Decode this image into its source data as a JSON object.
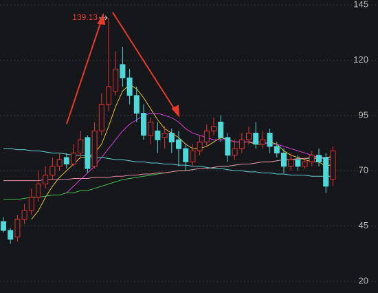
{
  "chart_data": {
    "type": "candlestick",
    "categories": [
      null,
      null,
      null,
      null,
      null,
      null,
      null,
      null,
      null,
      null,
      null,
      null,
      null,
      null,
      null,
      null,
      null,
      null,
      null,
      null,
      null,
      null,
      null,
      null,
      null,
      null,
      null,
      null,
      null,
      null,
      null,
      null,
      null,
      null,
      null,
      null,
      null,
      null,
      null,
      null,
      null,
      null,
      null,
      null,
      null,
      null,
      null,
      null
    ],
    "open": [
      47,
      43,
      40,
      48,
      52,
      58,
      64,
      68,
      72,
      76,
      73,
      78,
      85,
      72,
      88,
      100,
      106,
      118,
      112,
      104,
      96,
      86,
      88,
      85,
      87,
      84,
      80,
      74,
      79,
      83,
      88,
      92,
      85,
      77,
      80,
      84,
      87,
      82,
      87,
      81,
      78,
      72,
      75,
      72,
      74,
      77,
      76,
      66
    ],
    "high": [
      49,
      44,
      50,
      55,
      62,
      70,
      72,
      76,
      78,
      78,
      82,
      88,
      86,
      92,
      105,
      139.13,
      124,
      126,
      116,
      108,
      100,
      94,
      92,
      90,
      89,
      88,
      82,
      82,
      86,
      91,
      94,
      95,
      87,
      84,
      87,
      90,
      92,
      88,
      89,
      83,
      80,
      78,
      77,
      76,
      79,
      80,
      78,
      81
    ],
    "low": [
      42,
      37,
      38,
      46,
      50,
      56,
      62,
      66,
      70,
      71,
      72,
      76,
      69,
      71,
      86,
      97,
      104,
      108,
      100,
      92,
      84,
      82,
      78,
      80,
      78,
      72,
      70,
      72,
      77,
      81,
      86,
      83,
      74,
      75,
      78,
      82,
      80,
      80,
      78,
      76,
      69,
      70,
      70,
      71,
      72,
      72,
      60,
      63
    ],
    "close": [
      43,
      39,
      48,
      52,
      58,
      64,
      68,
      72,
      75,
      73,
      78,
      84,
      71,
      88,
      100,
      108,
      116,
      112,
      104,
      96,
      86,
      92,
      84,
      87,
      83,
      80,
      74,
      79,
      83,
      88,
      90,
      85,
      77,
      80,
      84,
      87,
      82,
      84,
      81,
      78,
      72,
      75,
      72,
      74,
      77,
      74,
      63,
      79
    ],
    "up_color": "#e03333",
    "down_color": "#4fd8d8",
    "series": [
      {
        "color": "#e6c229",
        "values": [
          null,
          null,
          null,
          null,
          48,
          52,
          58,
          63,
          67,
          70,
          73,
          76,
          76,
          78,
          82,
          90,
          99,
          106,
          109,
          107,
          103,
          98,
          93,
          89,
          87,
          85,
          82,
          80,
          80,
          81,
          83,
          85,
          84,
          83,
          83,
          83,
          82,
          82,
          83,
          82,
          79,
          77,
          76,
          75,
          74,
          74,
          72,
          73
        ]
      },
      {
        "color": "#d23fd8",
        "values": [
          null,
          null,
          null,
          null,
          null,
          null,
          null,
          null,
          null,
          60,
          63,
          66,
          69,
          72,
          76,
          80,
          84,
          88,
          91,
          93,
          95,
          96,
          96,
          95,
          94,
          92,
          89,
          87,
          86,
          85,
          84,
          84,
          84,
          83,
          83,
          83,
          83,
          83,
          82,
          82,
          81,
          80,
          79,
          78,
          77,
          76,
          75,
          75
        ]
      },
      {
        "color": "#3fbf4f",
        "values": [
          57,
          57,
          57,
          57.5,
          58,
          58,
          58.5,
          59,
          59,
          60,
          60,
          61,
          61,
          62,
          63,
          64,
          65,
          66,
          66.5,
          67,
          67.5,
          68,
          68.5,
          69,
          69.5,
          70,
          70,
          70.5,
          71,
          71,
          71.5,
          72,
          72,
          72.5,
          73,
          73,
          73.5,
          74,
          74,
          74.5,
          75,
          75,
          75,
          75.5,
          75.5,
          75.5,
          76,
          76
        ]
      },
      {
        "color": "#5fd4d4",
        "values": [
          80,
          80,
          79.5,
          79.5,
          79,
          79,
          78.5,
          78,
          78,
          77.5,
          77,
          77,
          76.5,
          76,
          76,
          75.5,
          75,
          75,
          74.5,
          74,
          74,
          73.5,
          73.5,
          73,
          73,
          72.5,
          72.5,
          72,
          72,
          71.5,
          71,
          71,
          70.5,
          70,
          70,
          69.5,
          69.5,
          69,
          69,
          68.5,
          68.5,
          68,
          68,
          68,
          67.5,
          67.5,
          67.5,
          67.5
        ]
      },
      {
        "color": "#e88aa8",
        "values": [
          65.5,
          65.5,
          65.5,
          65.5,
          65.5,
          65.5,
          66,
          66,
          66,
          66,
          66.5,
          66.5,
          66.5,
          67,
          67,
          67,
          67.5,
          67.5,
          68,
          68,
          68.5,
          68.5,
          69,
          69,
          69.5,
          70,
          70,
          70.5,
          71,
          71,
          71.5,
          72,
          72,
          72.5,
          73,
          73,
          73.5,
          74,
          74,
          74.5,
          75,
          75,
          75.5,
          75.5,
          76,
          76,
          76,
          76.5
        ]
      }
    ],
    "ylim": [
      14.7,
      147.2
    ],
    "yticks": [
      20,
      45,
      70,
      95,
      120,
      145
    ],
    "grid": true,
    "annotation_index": 15
  }
}
